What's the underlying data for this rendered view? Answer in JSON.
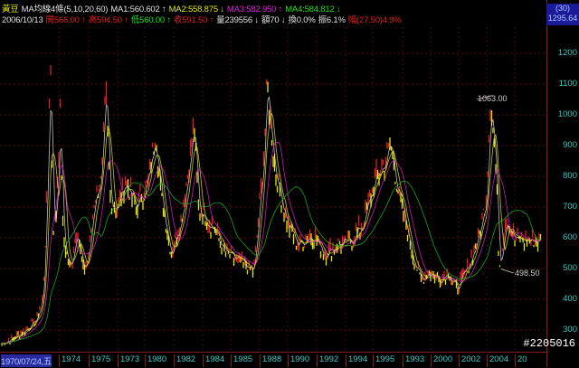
{
  "header": {
    "line1": [
      {
        "text": "黃豆",
        "color": "#e8e800"
      },
      {
        "text": "MA均線4條(5,10,20,60)",
        "color": "#e0e0e0"
      },
      {
        "text": "MA1:560.602 ↑",
        "color": "#e0e0e0"
      },
      {
        "text": "MA2:558.875 ↓",
        "color": "#e8e800"
      },
      {
        "text": "MA3:582.950 ↑",
        "color": "#e020e0"
      },
      {
        "text": "MA4:584.812 ↓",
        "color": "#20e020"
      }
    ],
    "line2": [
      {
        "text": "2006/10/13",
        "color": "#e0e0e0"
      },
      {
        "text": "開566.00 ↑",
        "color": "#e02020"
      },
      {
        "text": "高594.50 ↑",
        "color": "#e02020"
      },
      {
        "text": "低560.00 ↑",
        "color": "#20e020"
      },
      {
        "text": "收591.50 ↑",
        "color": "#e02020"
      },
      {
        "text": "量239556 ↓",
        "color": "#e0e0e0"
      },
      {
        "text": "額70 ↓",
        "color": "#e0e0e0"
      },
      {
        "text": "換0.0%",
        "color": "#e0e0e0"
      },
      {
        "text": "振6.1%",
        "color": "#e0e0e0"
      },
      {
        "text": "幅(27.50)4.9%",
        "color": "#e02020"
      }
    ]
  },
  "axis_top": {
    "period": "(30)",
    "max_value": "1295.64"
  },
  "watermark": "#2205016",
  "chart_data": {
    "type": "line",
    "ylim": [
      250,
      1295.64
    ],
    "y_ticks": [
      "1200",
      "1100",
      "1000",
      "900",
      "800",
      "700",
      "600",
      "500",
      "400",
      "300"
    ],
    "x_ticks": [
      "1970/07/24,五",
      "1974",
      "1975",
      "1973",
      "1980",
      "1982",
      "1984",
      "1985",
      "1988",
      "1990",
      "1992",
      "1994",
      "1995",
      "1993",
      "2000",
      "2002",
      "2004",
      "20"
    ],
    "grid": true,
    "colors": {
      "up": "#e02020",
      "down": "#e8e800",
      "ma_long": "#20c020",
      "ma_short": "#e0e0e0"
    },
    "annotations": [
      {
        "text": "1063.00",
        "x": 2004.3,
        "y": 1063.0
      },
      {
        "text": "498.50",
        "x": 2004.9,
        "y": 498.5
      }
    ],
    "series": [
      {
        "points": [
          [
            1970.0,
            256
          ],
          [
            1971.1,
            280
          ],
          [
            1972.4,
            330
          ],
          [
            1972.9,
            403
          ],
          [
            1973.2,
            785
          ],
          [
            1973.4,
            1212
          ],
          [
            1973.6,
            638
          ],
          [
            1973.8,
            668
          ],
          [
            1974.1,
            991
          ],
          [
            1974.3,
            609
          ],
          [
            1974.8,
            491
          ],
          [
            1975.3,
            638
          ],
          [
            1975.7,
            491
          ],
          [
            1976.1,
            536
          ],
          [
            1976.5,
            727
          ],
          [
            1977.0,
            785
          ],
          [
            1977.3,
            1079
          ],
          [
            1977.6,
            727
          ],
          [
            1978.1,
            697
          ],
          [
            1978.7,
            785
          ],
          [
            1979.4,
            697
          ],
          [
            1980.3,
            785
          ],
          [
            1980.8,
            947
          ],
          [
            1981.2,
            727
          ],
          [
            1981.9,
            550
          ],
          [
            1982.6,
            668
          ],
          [
            1982.9,
            756
          ],
          [
            1983.5,
            962
          ],
          [
            1983.8,
            697
          ],
          [
            1984.8,
            638
          ],
          [
            1985.7,
            550
          ],
          [
            1986.7,
            521
          ],
          [
            1987.7,
            491
          ],
          [
            1988.4,
            874
          ],
          [
            1988.6,
            1094
          ],
          [
            1989.2,
            815
          ],
          [
            1990.1,
            638
          ],
          [
            1990.8,
            580
          ],
          [
            1991.8,
            609
          ],
          [
            1992.7,
            550
          ],
          [
            1993.7,
            580
          ],
          [
            1994.3,
            580
          ],
          [
            1995.3,
            638
          ],
          [
            1996.2,
            785
          ],
          [
            1996.9,
            844
          ],
          [
            1997.3,
            903
          ],
          [
            1997.8,
            756
          ],
          [
            1998.8,
            550
          ],
          [
            1999.4,
            462
          ],
          [
            2000.0,
            491
          ],
          [
            2000.7,
            462
          ],
          [
            2001.3,
            491
          ],
          [
            2001.9,
            433
          ],
          [
            2002.6,
            491
          ],
          [
            2003.5,
            609
          ],
          [
            2004.0,
            727
          ],
          [
            2004.3,
            1063
          ],
          [
            2004.7,
            815
          ],
          [
            2004.9,
            498.5
          ],
          [
            2005.4,
            668
          ],
          [
            2006.0,
            594
          ],
          [
            2006.8,
            591.5
          ]
        ]
      }
    ]
  }
}
